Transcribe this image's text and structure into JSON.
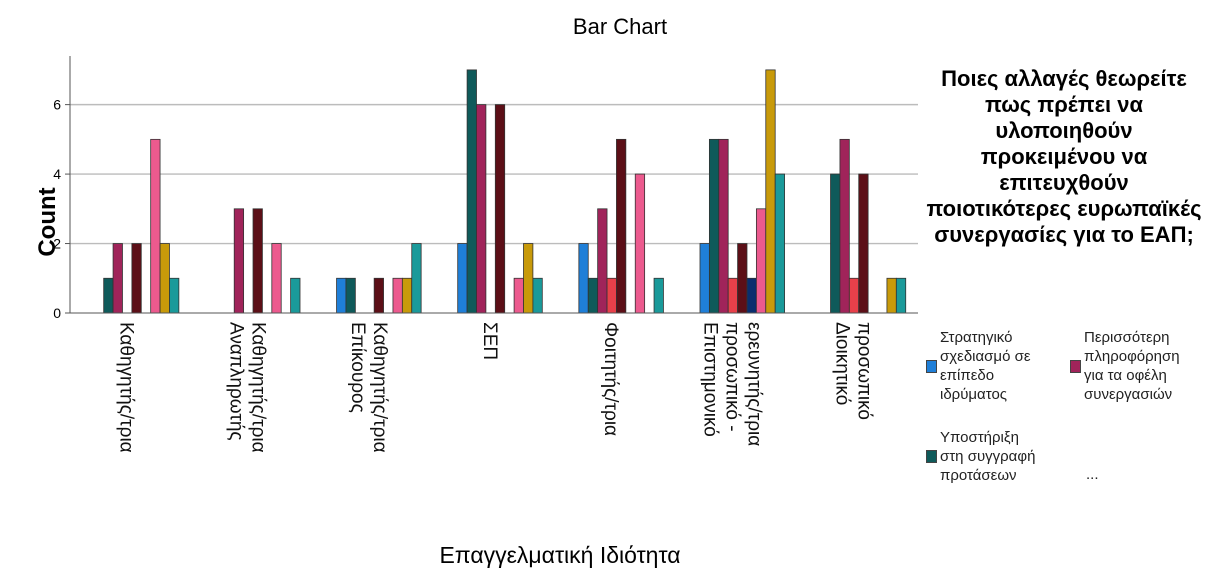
{
  "chart_data": {
    "type": "bar",
    "title": "Bar Chart",
    "xlabel": "Επαγγελματική Ιδιότητα",
    "ylabel": "Count",
    "ylim": [
      0,
      7.4
    ],
    "yticks": [
      0,
      2,
      4,
      6
    ],
    "grid": true,
    "legend_placement": "right",
    "legend_title": "Ποιες αλλαγές θεωρείτε πως πρέπει να υλοποιηθούν προκειμένου να επιτευχθούν ποιοτικότερες ευρωπαϊκές συνεργασίες για το ΕΑΠ;",
    "categories": [
      [
        "Καθηγητής/τρια"
      ],
      [
        "Αναπληρωτής",
        "Καθηγητής/τρια"
      ],
      [
        "Επίκουρος",
        "Καθηγητής/τρια"
      ],
      [
        "ΣΕΠ"
      ],
      [
        "Φοιτητής/τρια"
      ],
      [
        "Επιστημονικό",
        "προσωπικό -",
        "ερευνητής/τρια"
      ],
      [
        "Διοικητικό",
        "προσωπικό"
      ]
    ],
    "series": [
      {
        "name": "Στρατηγικό σχεδιασμό σε επίπεδο ιδρύματος",
        "color": "#1f7fd8",
        "values": [
          0,
          0,
          1,
          2,
          2,
          2,
          0
        ]
      },
      {
        "name": "Υποστήριξη στη συγγραφή προτάσεων",
        "color": "#0f5a5a",
        "values": [
          1,
          0,
          1,
          7,
          1,
          5,
          4
        ]
      },
      {
        "color": "#a0245a",
        "values": [
          2,
          3,
          0,
          6,
          3,
          5,
          5
        ]
      },
      {
        "color": "#e8404a",
        "values": [
          0,
          0,
          0,
          0,
          1,
          1,
          1
        ]
      },
      {
        "color": "#5c0f17",
        "values": [
          2,
          3,
          1,
          6,
          5,
          2,
          4
        ]
      },
      {
        "color": "#0a2e6e",
        "values": [
          0,
          0,
          0,
          0,
          0,
          1,
          0
        ]
      },
      {
        "color": "#ec5a8e",
        "values": [
          5,
          2,
          1,
          1,
          4,
          3,
          0
        ]
      },
      {
        "color": "#c89a0a",
        "values": [
          2,
          0,
          1,
          2,
          0,
          7,
          1
        ]
      },
      {
        "color": "#1a9a9a",
        "values": [
          1,
          1,
          2,
          1,
          1,
          4,
          1
        ]
      }
    ]
  },
  "legend": {
    "items": [
      {
        "label": [
          "Στρατηγικό",
          "σχεδιασμό σε",
          "επίπεδο",
          "ιδρύματος"
        ],
        "color": "#1f7fd8"
      },
      {
        "label": [
          "Περισσότερη",
          "πληροφόρηση",
          "για τα οφέλη",
          "συνεργασιών"
        ],
        "color": "#a0245a"
      },
      {
        "label": [
          "Υποστήριξη",
          "στη συγγραφή",
          "προτάσεων"
        ],
        "color": "#0f5a5a"
      }
    ],
    "more": "..."
  }
}
